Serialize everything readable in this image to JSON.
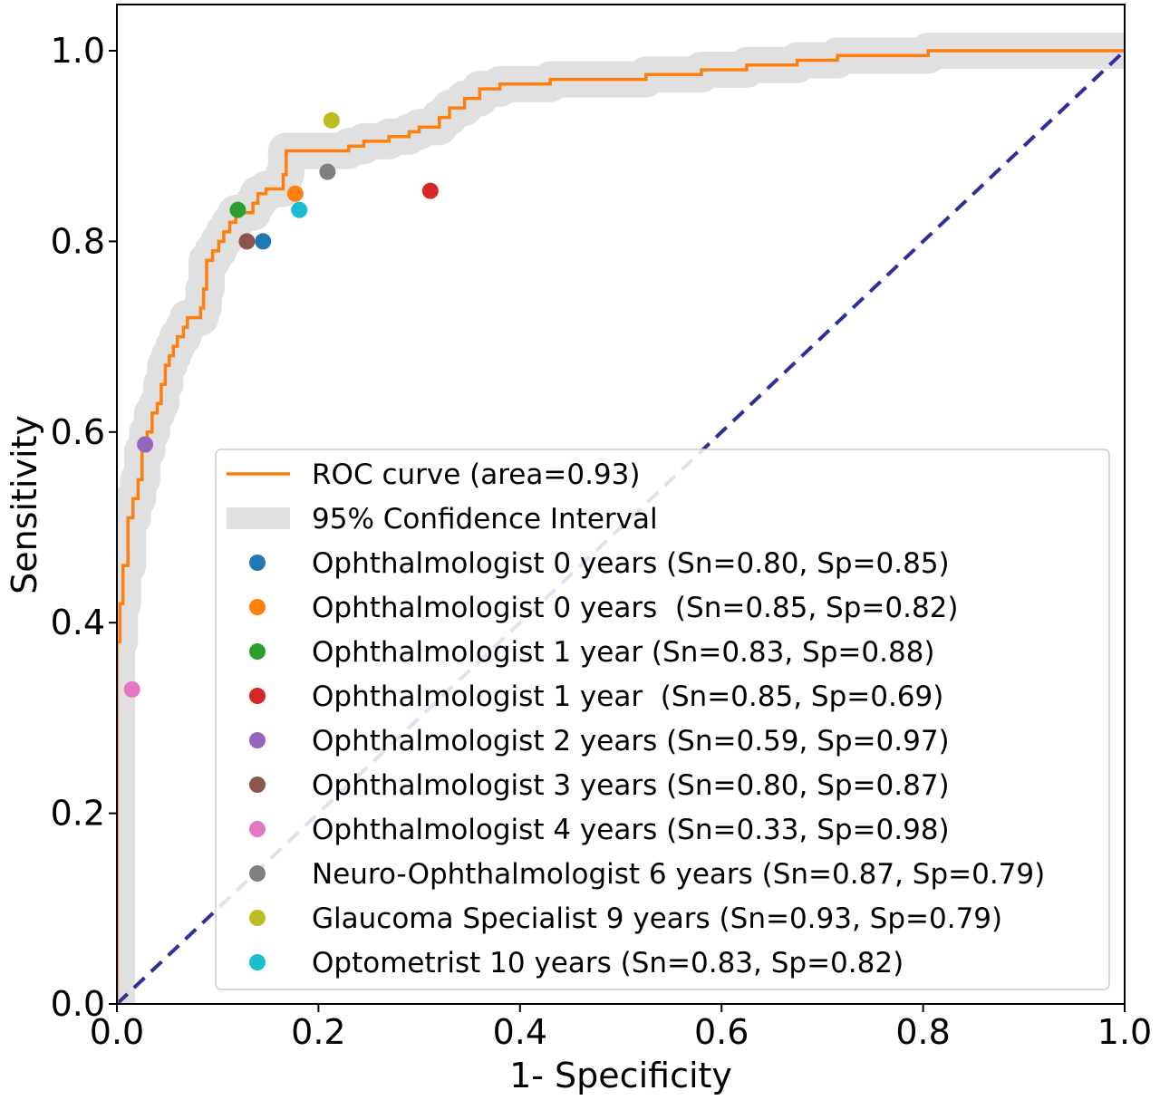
{
  "chart_data": {
    "type": "line",
    "title": "",
    "xlabel": "1- Specificity",
    "ylabel": "Sensitivity",
    "xlim": [
      0.0,
      1.0
    ],
    "ylim": [
      0.0,
      1.0
    ],
    "xticks": [
      "0.0",
      "0.2",
      "0.4",
      "0.6",
      "0.8",
      "1.0"
    ],
    "yticks": [
      "0.0",
      "0.2",
      "0.4",
      "0.6",
      "0.8",
      "1.0"
    ],
    "grid": false,
    "legend_position": "bottom-right",
    "roc_curve": {
      "label": "ROC curve (area=0.93)",
      "color": "#ff7f0e",
      "points": [
        [
          0,
          0
        ],
        [
          0,
          0.38
        ],
        [
          0.003,
          0.38
        ],
        [
          0.003,
          0.42
        ],
        [
          0.006,
          0.42
        ],
        [
          0.006,
          0.46
        ],
        [
          0.011,
          0.46
        ],
        [
          0.011,
          0.51
        ],
        [
          0.016,
          0.51
        ],
        [
          0.016,
          0.53
        ],
        [
          0.021,
          0.53
        ],
        [
          0.021,
          0.55
        ],
        [
          0.025,
          0.55
        ],
        [
          0.025,
          0.58
        ],
        [
          0.03,
          0.58
        ],
        [
          0.03,
          0.6
        ],
        [
          0.035,
          0.6
        ],
        [
          0.035,
          0.62
        ],
        [
          0.04,
          0.62
        ],
        [
          0.04,
          0.63
        ],
        [
          0.044,
          0.63
        ],
        [
          0.044,
          0.65
        ],
        [
          0.048,
          0.65
        ],
        [
          0.048,
          0.67
        ],
        [
          0.052,
          0.67
        ],
        [
          0.052,
          0.68
        ],
        [
          0.056,
          0.68
        ],
        [
          0.056,
          0.69
        ],
        [
          0.06,
          0.69
        ],
        [
          0.06,
          0.7
        ],
        [
          0.066,
          0.7
        ],
        [
          0.066,
          0.71
        ],
        [
          0.07,
          0.71
        ],
        [
          0.07,
          0.72
        ],
        [
          0.083,
          0.72
        ],
        [
          0.083,
          0.73
        ],
        [
          0.086,
          0.73
        ],
        [
          0.086,
          0.75
        ],
        [
          0.089,
          0.75
        ],
        [
          0.089,
          0.78
        ],
        [
          0.095,
          0.78
        ],
        [
          0.095,
          0.79
        ],
        [
          0.101,
          0.79
        ],
        [
          0.101,
          0.8
        ],
        [
          0.106,
          0.8
        ],
        [
          0.106,
          0.81
        ],
        [
          0.112,
          0.81
        ],
        [
          0.112,
          0.82
        ],
        [
          0.118,
          0.82
        ],
        [
          0.118,
          0.83
        ],
        [
          0.135,
          0.83
        ],
        [
          0.135,
          0.84
        ],
        [
          0.14,
          0.84
        ],
        [
          0.14,
          0.85
        ],
        [
          0.148,
          0.85
        ],
        [
          0.148,
          0.855
        ],
        [
          0.165,
          0.855
        ],
        [
          0.165,
          0.87
        ],
        [
          0.168,
          0.87
        ],
        [
          0.168,
          0.895
        ],
        [
          0.23,
          0.895
        ],
        [
          0.23,
          0.9
        ],
        [
          0.245,
          0.9
        ],
        [
          0.245,
          0.905
        ],
        [
          0.27,
          0.905
        ],
        [
          0.27,
          0.91
        ],
        [
          0.29,
          0.91
        ],
        [
          0.29,
          0.915
        ],
        [
          0.3,
          0.915
        ],
        [
          0.3,
          0.92
        ],
        [
          0.32,
          0.92
        ],
        [
          0.32,
          0.93
        ],
        [
          0.33,
          0.93
        ],
        [
          0.33,
          0.94
        ],
        [
          0.345,
          0.94
        ],
        [
          0.345,
          0.95
        ],
        [
          0.36,
          0.95
        ],
        [
          0.36,
          0.96
        ],
        [
          0.38,
          0.96
        ],
        [
          0.38,
          0.965
        ],
        [
          0.43,
          0.965
        ],
        [
          0.43,
          0.97
        ],
        [
          0.525,
          0.97
        ],
        [
          0.525,
          0.975
        ],
        [
          0.58,
          0.975
        ],
        [
          0.58,
          0.98
        ],
        [
          0.625,
          0.98
        ],
        [
          0.625,
          0.985
        ],
        [
          0.675,
          0.985
        ],
        [
          0.675,
          0.99
        ],
        [
          0.715,
          0.99
        ],
        [
          0.715,
          0.995
        ],
        [
          0.805,
          0.995
        ],
        [
          0.805,
          1.0
        ],
        [
          1.0,
          1.0
        ]
      ]
    },
    "confidence_band": {
      "label": "95% Confidence Interval",
      "color": "#e0e0e0"
    },
    "chance_line": {
      "color": "#2e2e9c",
      "points": [
        [
          0,
          0
        ],
        [
          1,
          1
        ]
      ]
    },
    "readers": [
      {
        "label": "Ophthalmologist 0 years (Sn=0.80, Sp=0.85)",
        "color": "#1f77b4",
        "x": 0.145,
        "y": 0.8
      },
      {
        "label": "Ophthalmologist 0 years  (Sn=0.85, Sp=0.82)",
        "color": "#ff7f0e",
        "x": 0.177,
        "y": 0.85
      },
      {
        "label": "Ophthalmologist 1 year (Sn=0.83, Sp=0.88)",
        "color": "#2ca02c",
        "x": 0.12,
        "y": 0.833
      },
      {
        "label": "Ophthalmologist 1 year  (Sn=0.85, Sp=0.69)",
        "color": "#d62728",
        "x": 0.311,
        "y": 0.853
      },
      {
        "label": "Ophthalmologist 2 years (Sn=0.59, Sp=0.97)",
        "color": "#9467bd",
        "x": 0.028,
        "y": 0.587
      },
      {
        "label": "Ophthalmologist 3 years (Sn=0.80, Sp=0.87)",
        "color": "#8c564b",
        "x": 0.129,
        "y": 0.8
      },
      {
        "label": "Ophthalmologist 4 years (Sn=0.33, Sp=0.98)",
        "color": "#e377c2",
        "x": 0.015,
        "y": 0.33
      },
      {
        "label": "Neuro-Ophthalmologist 6 years (Sn=0.87, Sp=0.79)",
        "color": "#7f7f7f",
        "x": 0.209,
        "y": 0.873
      },
      {
        "label": "Glaucoma Specialist 9 years (Sn=0.93, Sp=0.79)",
        "color": "#bcbd22",
        "x": 0.213,
        "y": 0.927
      },
      {
        "label": "Optometrist 10 years (Sn=0.83, Sp=0.82)",
        "color": "#17becf",
        "x": 0.181,
        "y": 0.833
      }
    ]
  }
}
